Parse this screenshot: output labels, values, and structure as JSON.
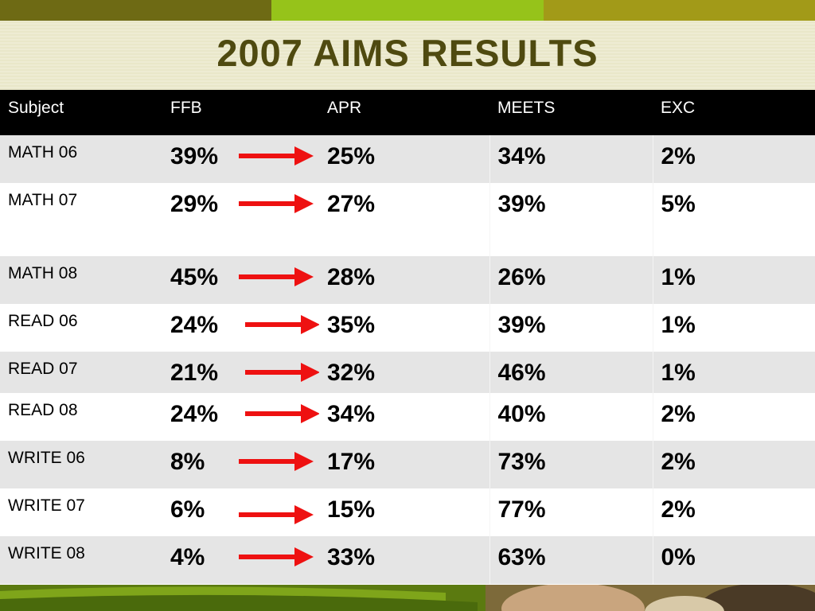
{
  "slide": {
    "title": "2007 AIMS RESULTS"
  },
  "colors": {
    "top_bar": [
      "#6e6a14",
      "#96c31a",
      "#a29a18"
    ],
    "title_text": "#4f4a10",
    "header_bg": "#000000",
    "row_alt": "#e5e5e5",
    "arrow": "#ee1111",
    "bottom_band": "#5b7a10"
  },
  "table": {
    "headers": [
      "Subject",
      "FFB",
      "APR",
      "MEETS",
      "EXC"
    ],
    "rows": [
      {
        "subject": "MATH 06",
        "ffb": "39%",
        "apr": "25%",
        "meets": "34%",
        "exc": "2%"
      },
      {
        "subject": "MATH 07",
        "ffb": "29%",
        "apr": "27%",
        "meets": "39%",
        "exc": "5%"
      },
      {
        "subject": "MATH 08",
        "ffb": "45%",
        "apr": "28%",
        "meets": "26%",
        "exc": "1%"
      },
      {
        "subject": "READ 06",
        "ffb": "24%",
        "apr": "35%",
        "meets": "39%",
        "exc": "1%"
      },
      {
        "subject": "READ 07",
        "ffb": "21%",
        "apr": "32%",
        "meets": "46%",
        "exc": "1%"
      },
      {
        "subject": "READ 08",
        "ffb": "24%",
        "apr": "34%",
        "meets": "40%",
        "exc": "2%"
      },
      {
        "subject": "WRITE 06",
        "ffb": "8%",
        "apr": "17%",
        "meets": "73%",
        "exc": "2%"
      },
      {
        "subject": "WRITE 07",
        "ffb": "6%",
        "apr": "15%",
        "meets": "77%",
        "exc": "2%"
      },
      {
        "subject": "WRITE 08",
        "ffb": "4%",
        "apr": "33%",
        "meets": "63%",
        "exc": "0%"
      }
    ],
    "arrow_icon": "right-arrow-icon"
  }
}
